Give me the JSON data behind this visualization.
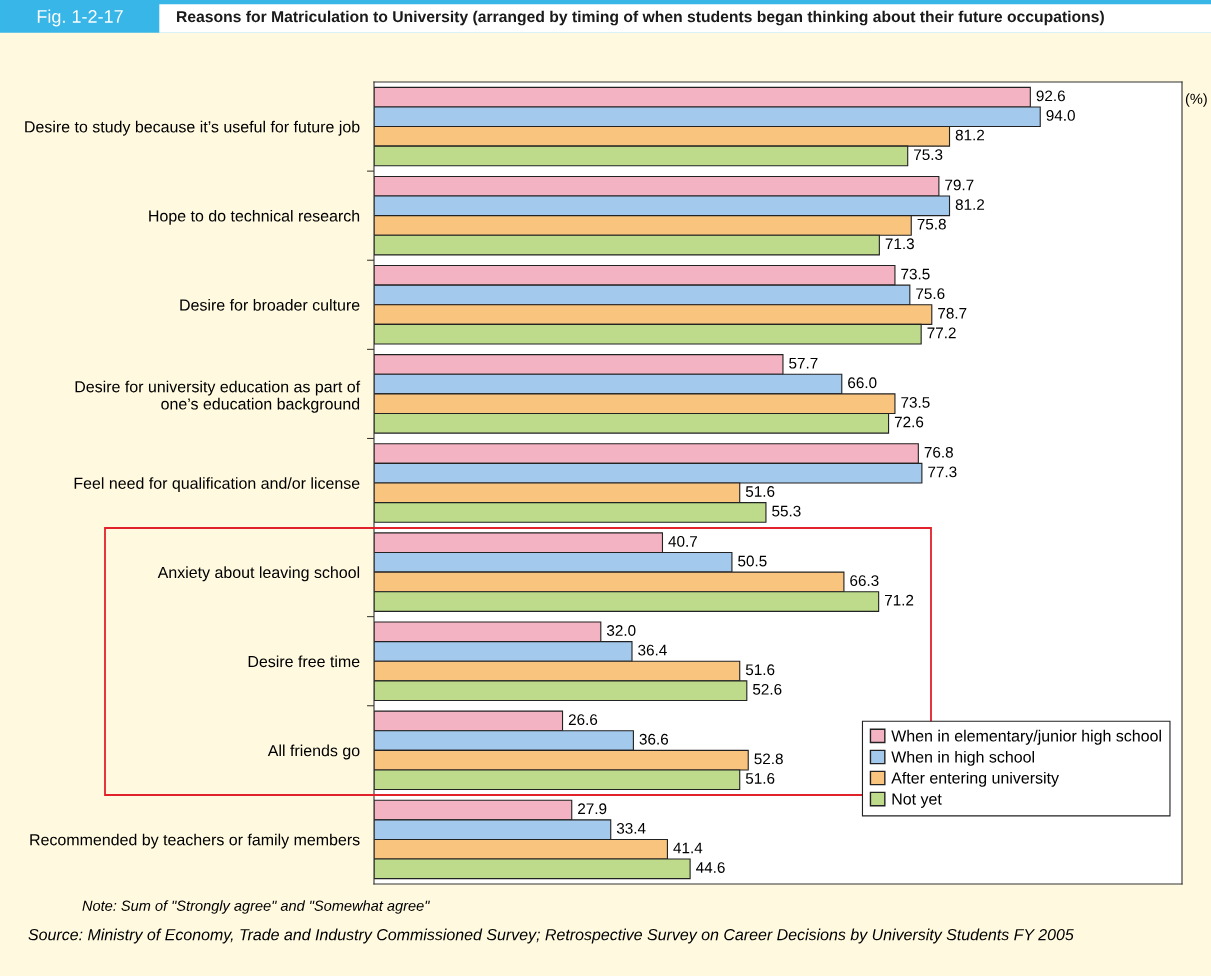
{
  "chart_data": {
    "type": "bar",
    "orientation": "horizontal",
    "subtitle": "Fig. 1-2-17",
    "title": "Reasons for Matriculation to University (arranged by timing of when students began thinking about their future occupations)",
    "categories": [
      "Desire to study because it’s useful for future job",
      "Hope to do technical research",
      "Desire for broader culture",
      "Desire for university education as part of\none’s education background",
      "Feel need for qualification and/or license",
      "Anxiety about leaving school",
      "Desire free time",
      "All friends go",
      "Recommended by teachers or family members"
    ],
    "series": [
      {
        "name": "When in elementary/junior high school",
        "color": "#f4b3c2",
        "values": [
          92.6,
          79.7,
          73.5,
          57.7,
          76.8,
          40.7,
          32.0,
          26.6,
          27.9
        ],
        "value_labels": [
          "92.6",
          "79.7",
          "73.5",
          "57.7",
          "76.8",
          "40.7",
          "32.0",
          "26.6",
          "27.9"
        ]
      },
      {
        "name": "When in high school",
        "color": "#a3c9ec",
        "values": [
          94.0,
          81.2,
          75.6,
          66.0,
          77.3,
          50.5,
          36.4,
          36.6,
          33.4
        ],
        "value_labels": [
          "94.0",
          "81.2",
          "75.6",
          "66.0",
          "77.3",
          "50.5",
          "36.4",
          "36.6",
          "33.4"
        ]
      },
      {
        "name": "After entering university",
        "color": "#f9c47e",
        "values": [
          81.2,
          75.8,
          78.7,
          73.5,
          51.6,
          66.3,
          51.6,
          52.8,
          41.4
        ],
        "value_labels": [
          "81.2",
          "75.8",
          "78.7",
          "73.5",
          "51.6",
          "66.3",
          "51.6",
          "52.8",
          "41.4"
        ]
      },
      {
        "name": "Not yet",
        "color": "#bddb8a",
        "values": [
          75.3,
          71.3,
          77.2,
          72.6,
          55.3,
          71.2,
          52.6,
          51.6,
          44.6
        ],
        "value_labels": [
          "75.3",
          "71.3",
          "77.2",
          "72.6",
          "55.3",
          "71.2",
          "52.6",
          "51.6",
          "44.6"
        ]
      }
    ],
    "xlim": [
      0,
      114
    ],
    "tick_labels": "y",
    "legend": "bottom right",
    "grid": false,
    "annotations": [
      "(%)",
      "Note: Sum of \"Strongly agree\" and \"Somewhat agree\"",
      "Source: Ministry of Economy, Trade and Industry Commissioned Survey; Retrospective Survey on Career Decisions by University Students FY 2005"
    ]
  }
}
